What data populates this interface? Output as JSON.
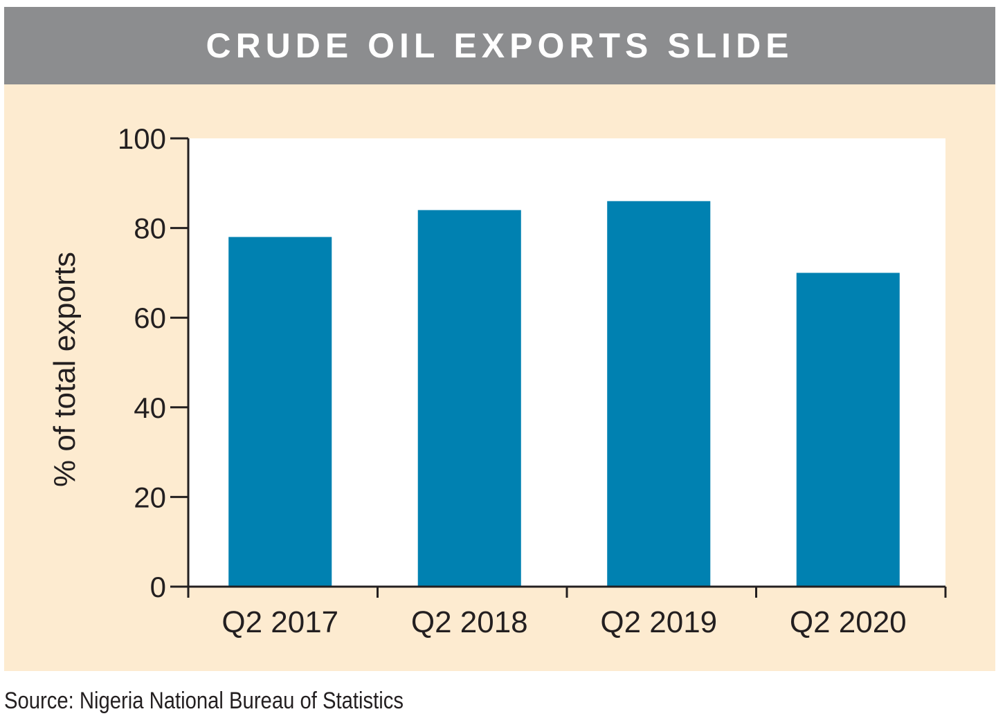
{
  "colors": {
    "title_bar": "#8c8d8f",
    "panel_background": "#fdebd0",
    "plot_background": "#ffffff",
    "bar": "#0081b1",
    "axis": "#231f20",
    "text": "#231f20",
    "title_text": "#ffffff"
  },
  "header": {
    "title": "CRUDE OIL EXPORTS SLIDE"
  },
  "footer": {
    "source": "Source: Nigeria National Bureau of Statistics"
  },
  "chart_data": {
    "type": "bar",
    "title": "CRUDE OIL EXPORTS SLIDE",
    "xlabel": "",
    "ylabel": "% of total exports",
    "categories": [
      "Q2 2017",
      "Q2 2018",
      "Q2 2019",
      "Q2 2020"
    ],
    "values": [
      78,
      84,
      86,
      70
    ],
    "ylim": [
      0,
      100
    ],
    "yticks": [
      0,
      20,
      40,
      60,
      80,
      100
    ],
    "ytick_labels": [
      "0",
      "20",
      "40",
      "60",
      "80",
      "100"
    ],
    "grid": false,
    "legend": "none"
  }
}
